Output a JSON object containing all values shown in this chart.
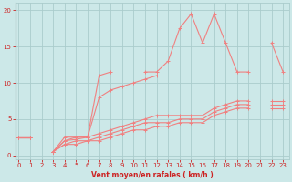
{
  "x": [
    0,
    1,
    2,
    3,
    4,
    5,
    6,
    7,
    8,
    9,
    10,
    11,
    12,
    13,
    14,
    15,
    16,
    17,
    18,
    19,
    20,
    21,
    22,
    23
  ],
  "line_jagged": [
    2.5,
    2.5,
    null,
    0.5,
    2.5,
    2.5,
    2.5,
    11.0,
    11.5,
    null,
    null,
    11.5,
    11.5,
    13.0,
    17.5,
    19.5,
    15.5,
    19.5,
    15.5,
    11.5,
    11.5,
    null,
    15.5,
    11.5
  ],
  "line_upper": [
    2.5,
    2.5,
    null,
    0.5,
    2.0,
    2.5,
    2.5,
    8.0,
    9.0,
    9.5,
    10.0,
    10.5,
    11.0,
    null,
    null,
    null,
    null,
    null,
    null,
    null,
    null,
    null,
    null,
    null
  ],
  "line_a": [
    2.5,
    2.5,
    null,
    0.5,
    2.0,
    2.2,
    2.5,
    3.0,
    3.5,
    4.0,
    4.5,
    5.0,
    5.5,
    5.5,
    5.5,
    5.5,
    5.5,
    6.5,
    7.0,
    7.5,
    7.5,
    null,
    7.5,
    7.5
  ],
  "line_b": [
    2.5,
    2.5,
    null,
    0.5,
    1.5,
    2.0,
    2.0,
    2.5,
    3.0,
    3.5,
    4.0,
    4.5,
    4.5,
    4.5,
    5.0,
    5.0,
    5.0,
    6.0,
    6.5,
    7.0,
    7.0,
    null,
    7.0,
    7.0
  ],
  "line_c": [
    2.5,
    2.5,
    null,
    0.5,
    1.5,
    1.5,
    2.0,
    2.0,
    2.5,
    3.0,
    3.5,
    3.5,
    4.0,
    4.0,
    4.5,
    4.5,
    4.5,
    5.5,
    6.0,
    6.5,
    6.5,
    null,
    6.5,
    6.5
  ],
  "bg_color": "#cce8e8",
  "line_color": "#f08080",
  "grid_color": "#aacccc",
  "tick_color": "#cc2222",
  "xlabel": "Vent moyen/en rafales ( km/h )",
  "yticks": [
    0,
    5,
    10,
    15,
    20
  ],
  "xticks": [
    0,
    1,
    2,
    3,
    4,
    5,
    6,
    7,
    8,
    9,
    10,
    11,
    12,
    13,
    14,
    15,
    16,
    17,
    18,
    19,
    20,
    21,
    22,
    23
  ],
  "ylim": [
    -0.5,
    21
  ],
  "xlim": [
    -0.3,
    23.5
  ]
}
